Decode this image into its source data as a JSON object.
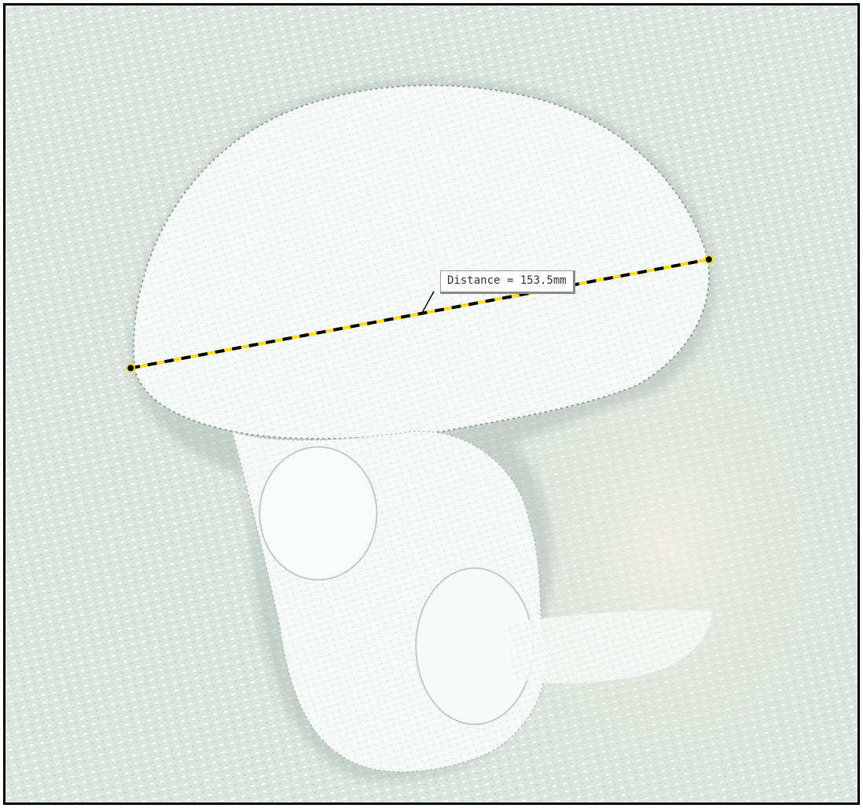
{
  "measurement": {
    "label": "Distance = 153.5mm",
    "line_colors": [
      "#ffde00",
      "#000000"
    ],
    "endpoint_color": "#000000"
  },
  "colors": {
    "background": "#dde7e1",
    "bone": "#f7faf8",
    "shadow": "#b8c7bf"
  }
}
